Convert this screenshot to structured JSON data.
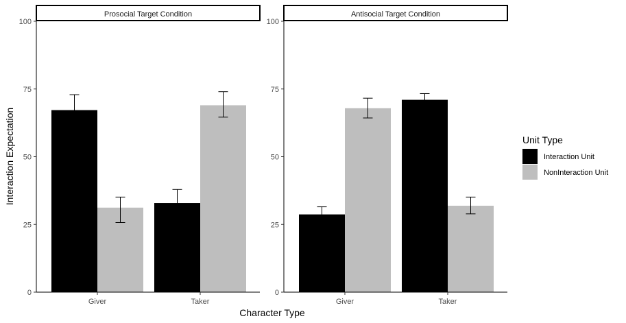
{
  "chart_data": {
    "type": "bar",
    "xlabel": "Character Type",
    "ylabel": "Interaction Expectation",
    "ylim": [
      0,
      100
    ],
    "yticks": [
      "0",
      "25",
      "50",
      "75",
      "100"
    ],
    "grid": false,
    "legend_position": "right",
    "legend_title": "Unit Type",
    "series_names": [
      "Interaction Unit",
      "NonInteraction Unit"
    ],
    "colors": {
      "Interaction Unit": "#000000",
      "NonInteraction Unit": "#bebebe"
    },
    "categories": [
      "Giver",
      "Taker"
    ],
    "panels": [
      {
        "title": "Prosocial Target Condition",
        "series": [
          {
            "name": "Interaction Unit",
            "values": [
              67.2,
              32.9
            ],
            "error_low": [
              62.3,
              28.0
            ],
            "error_high": [
              72.9,
              37.9
            ]
          },
          {
            "name": "NonInteraction Unit",
            "values": [
              31.2,
              69.0
            ],
            "error_low": [
              25.7,
              64.6
            ],
            "error_high": [
              35.1,
              74.0
            ]
          }
        ]
      },
      {
        "title": "Antisocial Target Condition",
        "series": [
          {
            "name": "Interaction Unit",
            "values": [
              28.7,
              71.0
            ],
            "error_low": [
              26.0,
              68.8
            ],
            "error_high": [
              31.5,
              73.3
            ]
          },
          {
            "name": "NonInteraction Unit",
            "values": [
              67.9,
              31.9
            ],
            "error_low": [
              64.3,
              28.9
            ],
            "error_high": [
              71.6,
              35.1
            ]
          }
        ]
      }
    ]
  }
}
